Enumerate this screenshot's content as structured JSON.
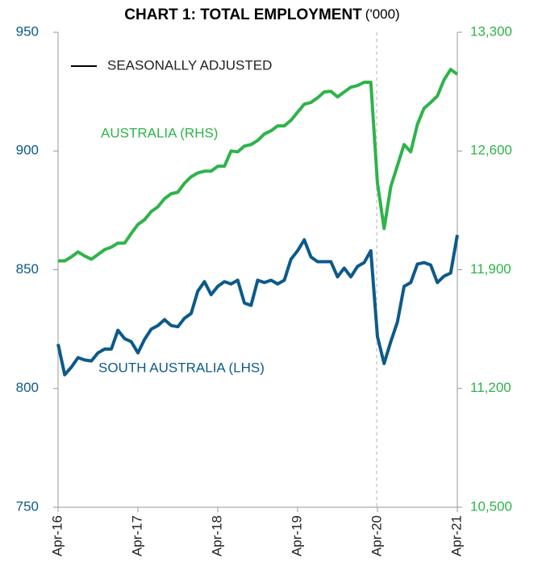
{
  "chart_data": {
    "type": "line",
    "title": "CHART 1: TOTAL EMPLOYMENT",
    "title_unit": "('000)",
    "legend_note": "SEASONALLY ADJUSTED",
    "categories": [
      "Apr-16",
      null,
      null,
      null,
      null,
      null,
      null,
      null,
      null,
      null,
      null,
      null,
      "Apr-17",
      null,
      null,
      null,
      null,
      null,
      null,
      null,
      null,
      null,
      null,
      null,
      "Apr-18",
      null,
      null,
      null,
      null,
      null,
      null,
      null,
      null,
      null,
      null,
      null,
      "Apr-19",
      null,
      null,
      null,
      null,
      null,
      null,
      null,
      null,
      null,
      null,
      null,
      "Apr-20",
      null,
      null,
      null,
      null,
      null,
      null,
      null,
      null,
      null,
      null,
      null,
      "Apr-21"
    ],
    "ylim": [
      750,
      950
    ],
    "yticks": [
      750,
      800,
      850,
      900,
      950
    ],
    "y2lim": [
      10500,
      13300
    ],
    "y2ticks": [
      {
        "value": 10500,
        "label": "10,500"
      },
      {
        "value": 11200,
        "label": "11,200"
      },
      {
        "value": 11900,
        "label": "11,900"
      },
      {
        "value": 12600,
        "label": "12,600"
      },
      {
        "value": 13300,
        "label": "13,300"
      }
    ],
    "series": [
      {
        "name": "AUSTRALIA (RHS)",
        "color": "#2fb34a",
        "axis": "y2",
        "values": [
          11952,
          11952,
          11976,
          12005,
          11981,
          11962,
          11990,
          12019,
          12033,
          12057,
          12057,
          12114,
          12167,
          12195,
          12243,
          12271,
          12319,
          12348,
          12357,
          12410,
          12448,
          12471,
          12481,
          12481,
          12510,
          12510,
          12600,
          12595,
          12629,
          12638,
          12662,
          12700,
          12719,
          12748,
          12748,
          12781,
          12829,
          12876,
          12886,
          12914,
          12948,
          12952,
          12919,
          12948,
          12976,
          12986,
          13005,
          13005,
          12410,
          12143,
          12390,
          12514,
          12638,
          12595,
          12757,
          12852,
          12886,
          12924,
          13019,
          13081,
          13052
        ]
      },
      {
        "name": "SOUTH AUSTRALIA (LHS)",
        "color": "#0d5a8a",
        "axis": "y",
        "values": [
          818.7,
          805.8,
          809,
          813,
          812,
          811.6,
          815,
          816.6,
          816.6,
          824.5,
          821,
          819.7,
          815,
          820.7,
          825,
          826.5,
          829,
          826.5,
          826,
          829.6,
          831.6,
          841,
          845,
          839.5,
          843,
          845,
          844,
          845.6,
          836,
          835,
          845.6,
          844.6,
          845.6,
          844,
          845.6,
          854.4,
          858,
          862.6,
          855.4,
          853.4,
          853.4,
          853.4,
          847,
          850.7,
          847,
          851.4,
          853,
          858,
          821.8,
          810.5,
          819.7,
          828,
          843,
          844.6,
          852.4,
          853,
          852,
          844.6,
          847.3,
          848.6,
          864.6
        ]
      }
    ]
  }
}
